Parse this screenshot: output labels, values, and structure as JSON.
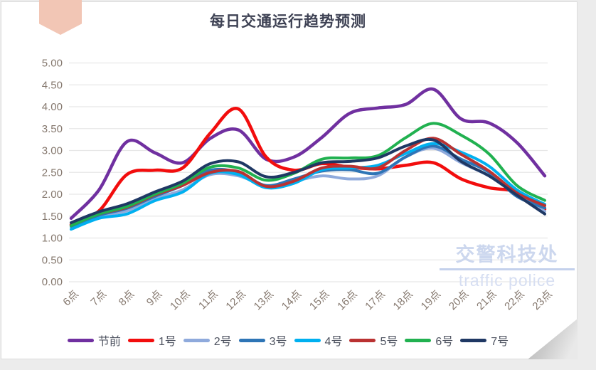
{
  "title": "每日交通运行趋势预测",
  "watermark": {
    "line1": "交警科技处",
    "line2": "traffic police"
  },
  "colors": {
    "background": "#ececec",
    "card": "#ffffff",
    "ribbon_accent": "#f2c6b5",
    "title_text": "#3e4254",
    "axis_text": "#85786e",
    "gridline": "#e7e7e7",
    "legend_text": "#4e5360",
    "watermark_text": "#ccd7ee"
  },
  "chart_data": {
    "type": "line",
    "title": "每日交通运行趋势预测",
    "xlabel": "",
    "ylabel": "",
    "ylim": [
      0,
      5
    ],
    "ytick_step": 0.5,
    "ytick_format_decimals": 2,
    "grid": true,
    "smooth": true,
    "legend_position": "bottom",
    "categories": [
      "6点",
      "7点",
      "8点",
      "9点",
      "10点",
      "11点",
      "12点",
      "13点",
      "14点",
      "15点",
      "16点",
      "17点",
      "18点",
      "19点",
      "20点",
      "21点",
      "22点",
      "23点"
    ],
    "series": [
      {
        "name": "节前",
        "color": "#7030A0",
        "width": 4.5,
        "values": [
          1.45,
          2.1,
          3.2,
          2.95,
          2.72,
          3.28,
          3.47,
          2.8,
          2.85,
          3.3,
          3.85,
          3.97,
          4.05,
          4.4,
          3.72,
          3.63,
          3.18,
          2.42
        ]
      },
      {
        "name": "1号",
        "color": "#F20D0D",
        "width": 4.5,
        "values": [
          1.3,
          1.62,
          2.45,
          2.55,
          2.6,
          3.4,
          3.95,
          2.85,
          2.55,
          2.7,
          2.62,
          2.58,
          2.66,
          2.72,
          2.35,
          2.15,
          2.05,
          1.66
        ]
      },
      {
        "name": "2号",
        "color": "#8FAADC",
        "width": 4,
        "values": [
          1.25,
          1.5,
          1.62,
          1.9,
          2.1,
          2.45,
          2.42,
          2.2,
          2.3,
          2.42,
          2.35,
          2.42,
          2.85,
          3.05,
          2.72,
          2.42,
          2.0,
          1.61
        ]
      },
      {
        "name": "3号",
        "color": "#2E75B6",
        "width": 4,
        "values": [
          1.27,
          1.52,
          1.68,
          1.95,
          2.2,
          2.55,
          2.5,
          2.2,
          2.35,
          2.53,
          2.56,
          2.48,
          2.85,
          3.1,
          2.8,
          2.5,
          1.95,
          1.69
        ]
      },
      {
        "name": "4号",
        "color": "#00B0F0",
        "width": 4,
        "values": [
          1.2,
          1.45,
          1.55,
          1.85,
          2.05,
          2.48,
          2.45,
          2.15,
          2.25,
          2.56,
          2.6,
          2.66,
          2.93,
          3.16,
          2.96,
          2.64,
          2.1,
          1.77
        ]
      },
      {
        "name": "5号",
        "color": "#BA3232",
        "width": 4,
        "values": [
          1.3,
          1.55,
          1.7,
          1.98,
          2.2,
          2.5,
          2.52,
          2.18,
          2.3,
          2.6,
          2.64,
          2.6,
          3.0,
          3.28,
          2.91,
          2.53,
          2.03,
          1.74
        ]
      },
      {
        "name": "6号",
        "color": "#21B150",
        "width": 4,
        "values": [
          1.28,
          1.55,
          1.72,
          2.0,
          2.25,
          2.62,
          2.6,
          2.32,
          2.48,
          2.8,
          2.83,
          2.88,
          3.29,
          3.62,
          3.35,
          2.92,
          2.2,
          1.86
        ]
      },
      {
        "name": "7号",
        "color": "#1F3864",
        "width": 4,
        "values": [
          1.35,
          1.6,
          1.78,
          2.05,
          2.3,
          2.7,
          2.74,
          2.4,
          2.5,
          2.72,
          2.75,
          2.83,
          3.1,
          3.24,
          2.75,
          2.42,
          1.98,
          1.55
        ]
      }
    ]
  }
}
